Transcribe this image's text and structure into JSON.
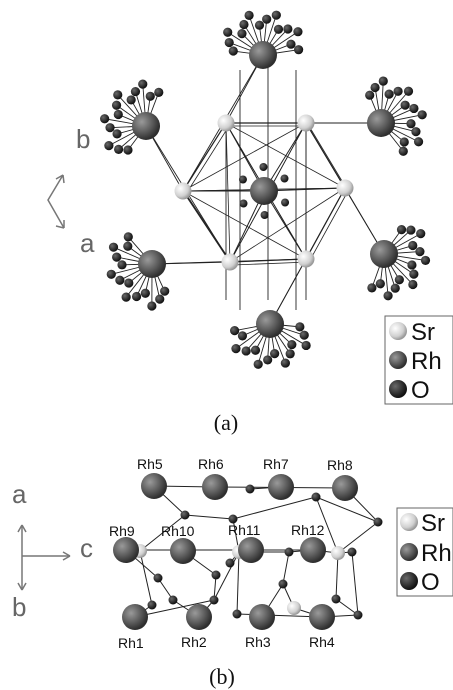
{
  "panel_a": {
    "caption": "(a)",
    "axes": {
      "b": "b",
      "a": "a"
    },
    "legend": [
      {
        "label": "Sr",
        "color": "#d6d6d6"
      },
      {
        "label": "Rh",
        "color": "#666666"
      },
      {
        "label": "O",
        "color": "#333333"
      }
    ]
  },
  "panel_b": {
    "caption": "(b)",
    "axes": {
      "a": "a",
      "c": "c",
      "b": "b"
    },
    "legend": [
      {
        "label": "Sr",
        "color": "#d6d6d6"
      },
      {
        "label": "Rh",
        "color": "#666666"
      },
      {
        "label": "O",
        "color": "#333333"
      }
    ],
    "rh_labels": [
      "Rh1",
      "Rh2",
      "Rh3",
      "Rh4",
      "Rh5",
      "Rh6",
      "Rh7",
      "Rh8",
      "Rh9",
      "Rh10",
      "Rh11",
      "Rh12"
    ]
  }
}
